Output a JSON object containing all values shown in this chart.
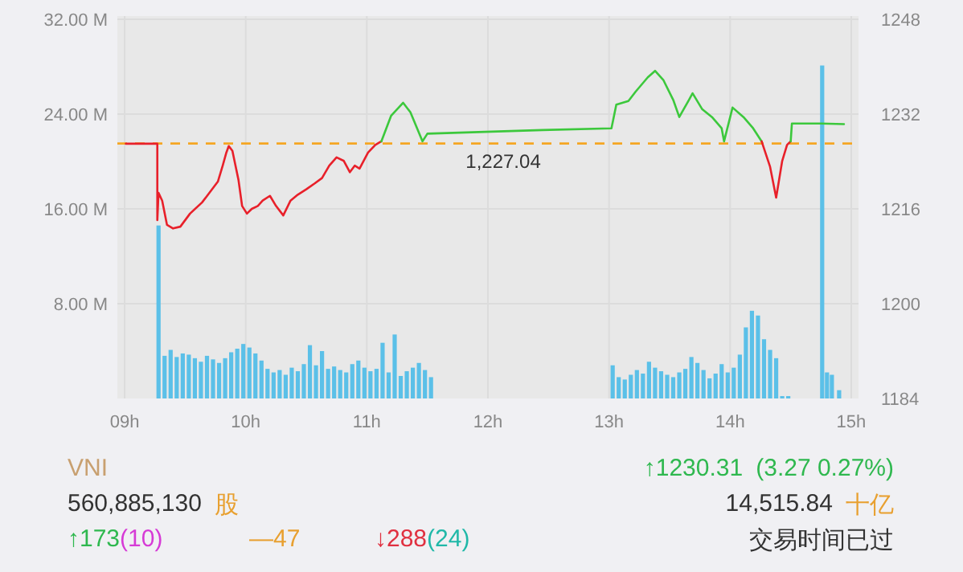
{
  "chart_data": {
    "type": "line",
    "xlim": [
      8.94,
      15.06
    ],
    "xticks": [
      {
        "value": 9,
        "label": "09h"
      },
      {
        "value": 10,
        "label": "10h"
      },
      {
        "value": 11,
        "label": "11h"
      },
      {
        "value": 12,
        "label": "12h"
      },
      {
        "value": 13,
        "label": "13h"
      },
      {
        "value": 14,
        "label": "14h"
      },
      {
        "value": 15,
        "label": "15h"
      }
    ],
    "ylim": [
      0,
      32
    ],
    "yticks": [
      {
        "value": 8,
        "label": "8.00 M"
      },
      {
        "value": 16,
        "label": "16.00 M"
      },
      {
        "value": 24,
        "label": "24.00 M"
      },
      {
        "value": 32,
        "label": "32.00 M"
      }
    ],
    "y2lim": [
      1184,
      1248
    ],
    "y2ticks": [
      1184,
      1200,
      1216,
      1232,
      1248
    ],
    "grid": true,
    "series": [
      {
        "type": "bar",
        "color": "#5bc0e8",
        "x": [
          9.28,
          9.33,
          9.38,
          9.43,
          9.48,
          9.53,
          9.58,
          9.63,
          9.68,
          9.73,
          9.78,
          9.83,
          9.88,
          9.93,
          9.98,
          10.03,
          10.08,
          10.13,
          10.18,
          10.23,
          10.28,
          10.33,
          10.38,
          10.43,
          10.48,
          10.53,
          10.58,
          10.63,
          10.68,
          10.73,
          10.78,
          10.83,
          10.88,
          10.93,
          10.98,
          11.03,
          11.08,
          11.13,
          11.18,
          11.23,
          11.28,
          11.33,
          11.38,
          11.43,
          11.48,
          11.53,
          13.03,
          13.08,
          13.13,
          13.18,
          13.23,
          13.28,
          13.33,
          13.38,
          13.43,
          13.48,
          13.53,
          13.58,
          13.63,
          13.68,
          13.73,
          13.78,
          13.83,
          13.88,
          13.93,
          13.98,
          14.03,
          14.08,
          14.13,
          14.18,
          14.23,
          14.28,
          14.33,
          14.38,
          14.43,
          14.48,
          14.76,
          14.8,
          14.84,
          14.9
        ],
        "values": [
          14.6,
          3.6,
          4.1,
          3.5,
          3.8,
          3.7,
          3.4,
          3.1,
          3.6,
          3.3,
          3.0,
          3.4,
          3.9,
          4.2,
          4.6,
          4.3,
          3.8,
          3.2,
          2.5,
          2.2,
          2.4,
          2.0,
          2.6,
          2.3,
          2.9,
          4.5,
          2.8,
          4.0,
          2.5,
          2.7,
          2.4,
          2.2,
          2.9,
          3.2,
          2.6,
          2.3,
          2.5,
          4.7,
          2.2,
          5.4,
          1.9,
          2.3,
          2.6,
          3.0,
          2.4,
          1.8,
          2.8,
          1.8,
          1.6,
          2.0,
          2.4,
          2.1,
          3.1,
          2.6,
          2.3,
          2.0,
          1.8,
          2.2,
          2.5,
          3.5,
          3.0,
          2.4,
          1.7,
          2.1,
          2.9,
          2.2,
          2.6,
          3.7,
          6.0,
          7.4,
          7.0,
          5.0,
          4.1,
          3.4,
          0.2,
          0.2,
          28.1,
          2.2,
          2.0,
          0.7
        ]
      },
      {
        "axis": "y2",
        "color": "#e8202a",
        "x": [
          9.01,
          9.27,
          9.27,
          9.28,
          9.31,
          9.35,
          9.4,
          9.46,
          9.54,
          9.64,
          9.7,
          9.77,
          9.81,
          9.84,
          9.86,
          9.89,
          9.94,
          9.97,
          10.01,
          10.05,
          10.1,
          10.14,
          10.2,
          10.25,
          10.31,
          10.37,
          10.43,
          10.5,
          10.57,
          10.63,
          10.69,
          10.75,
          10.81,
          10.86,
          10.9,
          10.94,
          11.01,
          11.07,
          11.12
        ],
        "values": [
          1227.0,
          1227.0,
          1214.1,
          1218.7,
          1217.4,
          1213.3,
          1212.7,
          1213.0,
          1215.2,
          1217.1,
          1218.7,
          1220.6,
          1223.3,
          1225.5,
          1226.6,
          1225.8,
          1220.9,
          1216.5,
          1215.2,
          1216.0,
          1216.5,
          1217.4,
          1218.2,
          1216.5,
          1214.9,
          1217.4,
          1218.4,
          1219.3,
          1220.3,
          1221.2,
          1223.3,
          1224.7,
          1224.1,
          1222.2,
          1223.3,
          1222.8,
          1225.5,
          1226.8,
          1227.4
        ]
      },
      {
        "axis": "y2",
        "color": "#3cc83c",
        "x": [
          11.12,
          11.2,
          11.3,
          11.36,
          11.46,
          11.5,
          12.45,
          13.02,
          13.06,
          13.16,
          13.22,
          13.32,
          13.38,
          13.45,
          13.53,
          13.58,
          13.66,
          13.69,
          13.77,
          13.85,
          13.93,
          13.95,
          14.02,
          14.11,
          14.19,
          14.26
        ],
        "values": [
          1227.4,
          1231.7,
          1233.9,
          1232.3,
          1227.4,
          1228.7,
          1229.3,
          1229.6,
          1233.6,
          1234.2,
          1235.8,
          1238.2,
          1239.3,
          1237.7,
          1234.4,
          1231.5,
          1234.4,
          1235.5,
          1232.8,
          1231.5,
          1229.6,
          1227.4,
          1233.1,
          1231.5,
          1229.6,
          1227.4
        ]
      },
      {
        "axis": "y2",
        "color": "#e8202a",
        "x": [
          14.26,
          14.33,
          14.38,
          14.43,
          14.47,
          14.5
        ],
        "values": [
          1227.4,
          1223.1,
          1217.9,
          1224.1,
          1226.8,
          1227.4
        ]
      },
      {
        "axis": "y2",
        "color": "#3cc83c",
        "x": [
          14.5,
          14.51,
          14.75,
          14.94
        ],
        "values": [
          1227.4,
          1230.4,
          1230.4,
          1230.3
        ]
      }
    ],
    "ref_lines": [
      {
        "axis": "y2",
        "value": 1227.04,
        "label": "1,227.04",
        "color": "#f5a623",
        "line_style": "dashed"
      }
    ],
    "annotations": [
      "VNI",
      "560,885,130",
      "股",
      "↑1230.31",
      "(3.27 0.27%)",
      "14,515.84",
      "十亿",
      "↑173",
      "(10)",
      "—47",
      "↓288",
      "(24)",
      "交易时间已过"
    ]
  }
}
